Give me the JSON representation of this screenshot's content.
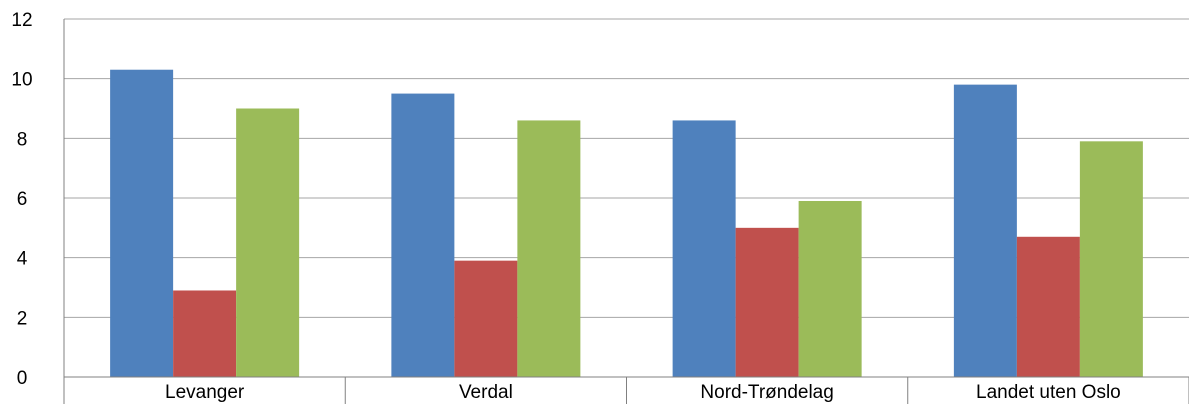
{
  "chart_data": {
    "type": "bar",
    "categories": [
      "Levanger",
      "Verdal",
      "Nord-Trøndelag",
      "Landet uten Oslo"
    ],
    "series": [
      {
        "values": [
          10.3,
          9.5,
          8.6,
          9.8
        ],
        "color": "#4F81BD"
      },
      {
        "values": [
          2.9,
          3.9,
          5.0,
          4.7
        ],
        "color": "#C0504D"
      },
      {
        "values": [
          9.0,
          8.6,
          5.9,
          7.9
        ],
        "color": "#9BBB59"
      }
    ],
    "y_ticks": [
      "0",
      "2",
      "4",
      "6",
      "8",
      "10",
      "12"
    ],
    "ylim": [
      0,
      12
    ],
    "grid": true,
    "legend": "none",
    "title": "",
    "xlabel": "",
    "ylabel": ""
  }
}
